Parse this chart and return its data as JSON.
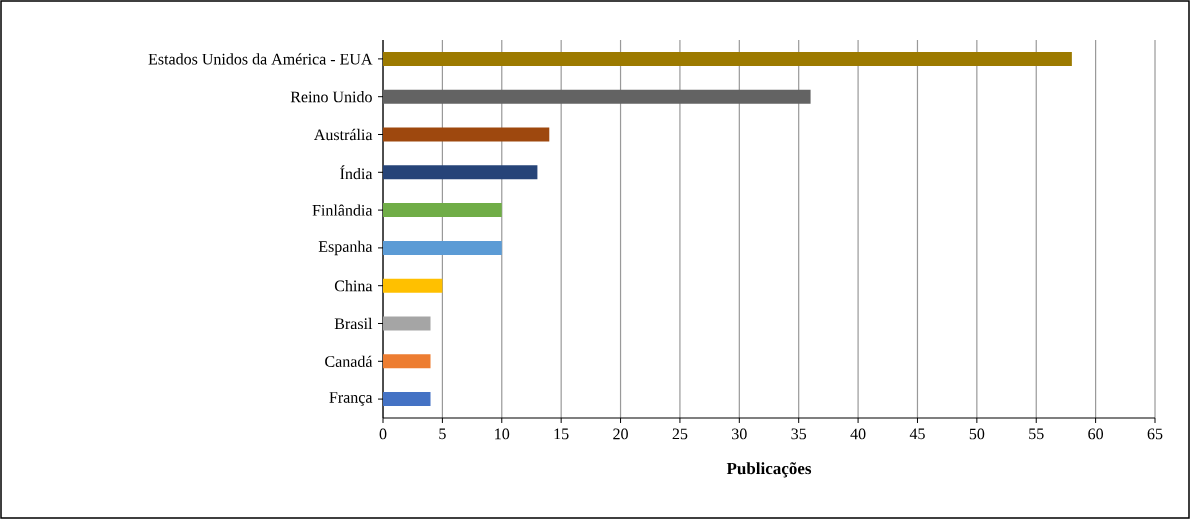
{
  "chart_data": {
    "type": "bar",
    "orientation": "horizontal",
    "xlabel": "Publicações",
    "categories": [
      "Estados Unidos da América - EUA",
      "Reino Unido",
      "Austrália",
      "Índia",
      "Finlândia",
      "Espanha",
      "China",
      "Brasil",
      "Canadá",
      "França"
    ],
    "values": [
      58,
      36,
      14,
      13,
      10,
      10,
      5,
      4,
      4,
      4
    ],
    "colors": [
      "#9c7a00",
      "#636363",
      "#9e480e",
      "#264478",
      "#70ad47",
      "#5b9bd5",
      "#ffc000",
      "#a5a5a5",
      "#ed7d31",
      "#4472c4"
    ],
    "xlim": [
      0,
      65
    ],
    "xticks": [
      0,
      5,
      10,
      15,
      20,
      25,
      30,
      35,
      40,
      45,
      50,
      55,
      60,
      65
    ],
    "grid": "x"
  }
}
